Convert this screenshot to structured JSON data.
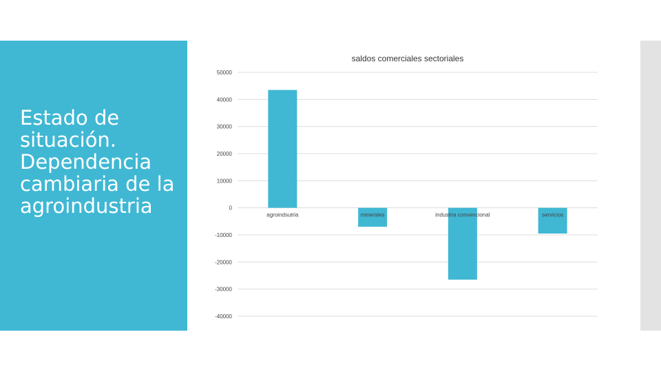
{
  "slide": {
    "title": "Estado de situación. Dependencia cambiaria  de la agroindustria",
    "accent_color": "#40b8d4"
  },
  "chart_data": {
    "type": "bar",
    "title": "saldos comerciales sectoriales",
    "categories": [
      "agroindsutria",
      "minerales",
      "industria convencional",
      "servicios"
    ],
    "values": [
      43500,
      -7000,
      -26500,
      -9500
    ],
    "ylim": [
      -40000,
      50000
    ],
    "yticks": [
      "50000",
      "40000",
      "30000",
      "20000",
      "10000",
      "0",
      "-10000",
      "-20000",
      "-30000",
      "-40000"
    ],
    "grid": true,
    "bar_color": "#40b8d4",
    "xlabel": "",
    "ylabel": ""
  }
}
